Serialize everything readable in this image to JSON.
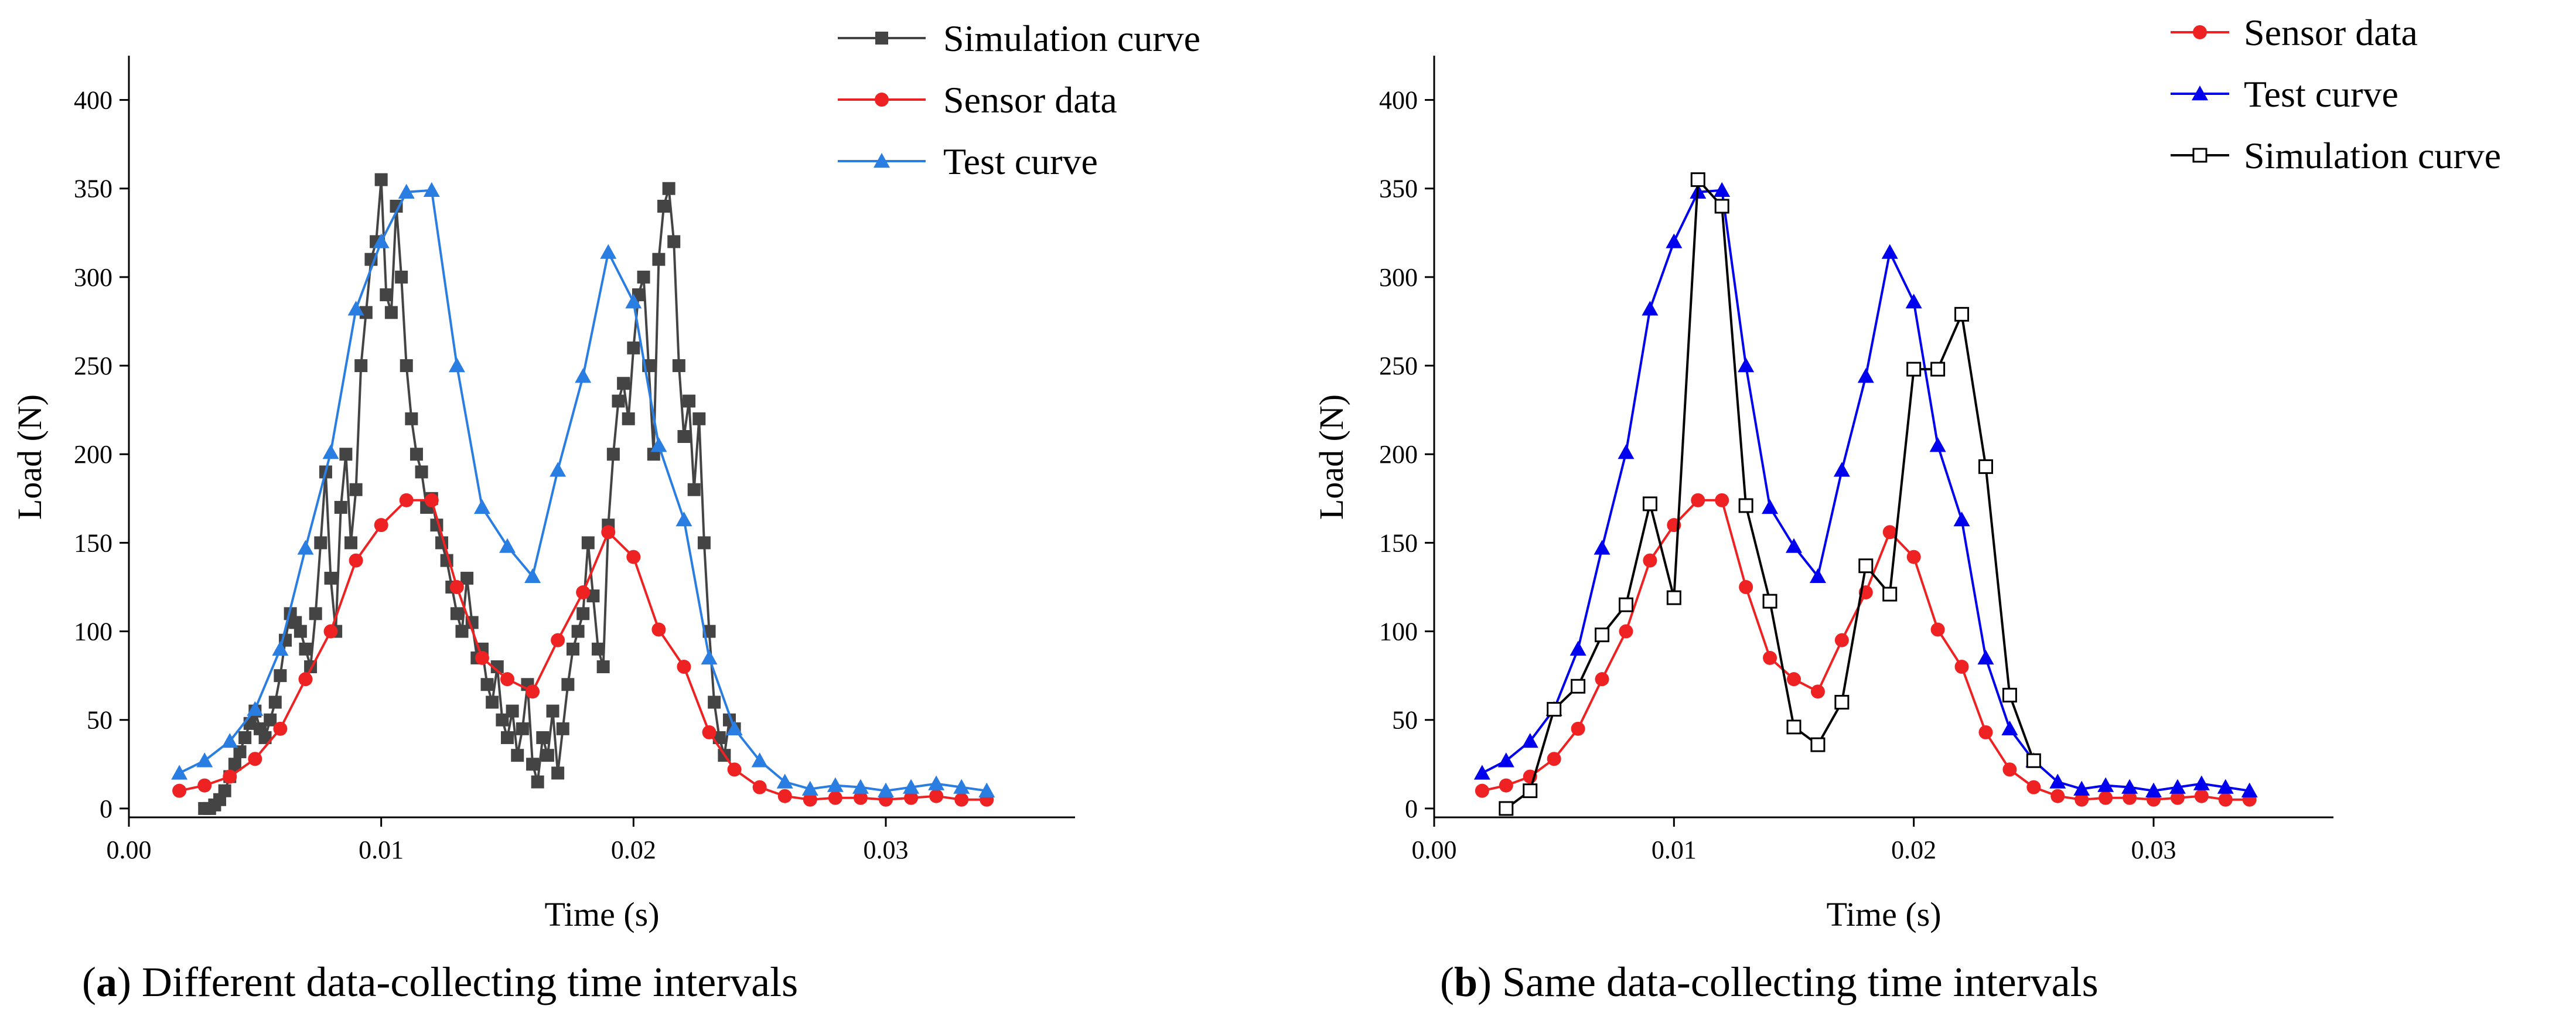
{
  "captions": {
    "a_letter": "a",
    "a_text": " Different data-collecting time intervals",
    "b_letter": "b",
    "b_text": " Same data-collecting time intervals"
  },
  "colors": {
    "sensor": "#ee2222",
    "test_a": "#2a7de1",
    "test_b": "#0000ee",
    "sim_a": "#444444",
    "sim_b": "#000000"
  },
  "chart_data": [
    {
      "id": "a",
      "type": "line",
      "title": "",
      "xlabel": "Time (s)",
      "ylabel": "Load (N)",
      "xlim": [
        0,
        0.0375
      ],
      "ylim": [
        -5,
        425
      ],
      "xticks": [
        0.0,
        0.01,
        0.02,
        0.03
      ],
      "xtick_labels": [
        "0.00",
        "0.01",
        "0.02",
        "0.03"
      ],
      "yticks": [
        0,
        50,
        100,
        150,
        200,
        250,
        300,
        350,
        400
      ],
      "ytick_labels": [
        "0",
        "50",
        "100",
        "150",
        "200",
        "250",
        "300",
        "350",
        "400"
      ],
      "legend_position": "top-right",
      "series": [
        {
          "name": "Simulation curve",
          "key": "sim",
          "color": "#444444",
          "marker": "square-filled",
          "x": [
            0.003,
            0.0032,
            0.0034,
            0.0036,
            0.0038,
            0.004,
            0.0042,
            0.0044,
            0.0046,
            0.0048,
            0.005,
            0.0052,
            0.0054,
            0.0056,
            0.0058,
            0.006,
            0.0062,
            0.0064,
            0.0066,
            0.0068,
            0.007,
            0.0072,
            0.0074,
            0.0076,
            0.0078,
            0.008,
            0.0082,
            0.0084,
            0.0086,
            0.0088,
            0.009,
            0.0092,
            0.0094,
            0.0096,
            0.0098,
            0.01,
            0.0102,
            0.0104,
            0.0106,
            0.0108,
            0.011,
            0.0112,
            0.0114,
            0.0116,
            0.0118,
            0.012,
            0.0122,
            0.0124,
            0.0126,
            0.0128,
            0.013,
            0.0132,
            0.0134,
            0.0136,
            0.0138,
            0.014,
            0.0142,
            0.0144,
            0.0146,
            0.0148,
            0.015,
            0.0152,
            0.0154,
            0.0156,
            0.0158,
            0.016,
            0.0162,
            0.0164,
            0.0166,
            0.0168,
            0.017,
            0.0172,
            0.0174,
            0.0176,
            0.0178,
            0.018,
            0.0182,
            0.0184,
            0.0186,
            0.0188,
            0.019,
            0.0192,
            0.0194,
            0.0196,
            0.0198,
            0.02,
            0.0202,
            0.0204,
            0.0206,
            0.0208,
            0.021,
            0.0212,
            0.0214,
            0.0216,
            0.0218,
            0.022,
            0.0222,
            0.0224,
            0.0226,
            0.0228,
            0.023,
            0.0232,
            0.0234,
            0.0236,
            0.0238,
            0.024
          ],
          "y": [
            0,
            0,
            2,
            5,
            10,
            18,
            25,
            32,
            40,
            48,
            55,
            45,
            40,
            50,
            60,
            75,
            95,
            110,
            105,
            100,
            90,
            80,
            110,
            150,
            190,
            130,
            100,
            170,
            200,
            150,
            180,
            250,
            280,
            310,
            320,
            355,
            290,
            280,
            340,
            300,
            250,
            220,
            200,
            190,
            170,
            175,
            160,
            150,
            140,
            125,
            110,
            100,
            130,
            105,
            85,
            90,
            70,
            60,
            80,
            50,
            40,
            55,
            30,
            45,
            70,
            25,
            15,
            40,
            30,
            55,
            20,
            45,
            70,
            90,
            100,
            110,
            150,
            120,
            90,
            80,
            160,
            200,
            230,
            240,
            220,
            260,
            290,
            300,
            250,
            200,
            310,
            340,
            350,
            320,
            250,
            210,
            230,
            180,
            220,
            150,
            100,
            60,
            40,
            30,
            50,
            45
          ]
        },
        {
          "name": "Sensor data",
          "key": "sensor",
          "color": "#ee2222",
          "marker": "circle-filled",
          "x": [
            0.002,
            0.003,
            0.004,
            0.005,
            0.006,
            0.007,
            0.008,
            0.009,
            0.01,
            0.011,
            0.012,
            0.013,
            0.014,
            0.015,
            0.016,
            0.017,
            0.018,
            0.019,
            0.02,
            0.021,
            0.022,
            0.023,
            0.024,
            0.025,
            0.026,
            0.027,
            0.028,
            0.029,
            0.03,
            0.031,
            0.032,
            0.033,
            0.034
          ],
          "y": [
            10,
            13,
            18,
            28,
            45,
            73,
            100,
            140,
            160,
            174,
            174,
            125,
            85,
            73,
            66,
            95,
            122,
            156,
            142,
            101,
            80,
            43,
            22,
            12,
            7,
            5,
            6,
            6,
            5,
            6,
            7,
            5,
            5
          ]
        },
        {
          "name": "Test curve",
          "key": "test",
          "color": "#2a7de1",
          "marker": "triangle-filled",
          "x": [
            0.002,
            0.003,
            0.004,
            0.005,
            0.006,
            0.007,
            0.008,
            0.009,
            0.01,
            0.011,
            0.012,
            0.013,
            0.014,
            0.015,
            0.016,
            0.017,
            0.018,
            0.019,
            0.02,
            0.021,
            0.022,
            0.023,
            0.024,
            0.025,
            0.026,
            0.027,
            0.028,
            0.029,
            0.03,
            0.031,
            0.032,
            0.033,
            0.034
          ],
          "y": [
            20,
            27,
            38,
            56,
            90,
            147,
            201,
            282,
            320,
            348,
            349,
            250,
            170,
            148,
            131,
            191,
            244,
            314,
            286,
            205,
            163,
            85,
            45,
            27,
            15,
            11,
            13,
            12,
            10,
            12,
            14,
            12,
            10
          ]
        }
      ]
    },
    {
      "id": "b",
      "type": "line",
      "title": "",
      "xlabel": "Time (s)",
      "ylabel": "Load (N)",
      "xlim": [
        0,
        0.0375
      ],
      "ylim": [
        -5,
        425
      ],
      "xticks": [
        0.0,
        0.01,
        0.02,
        0.03
      ],
      "xtick_labels": [
        "0.00",
        "0.01",
        "0.02",
        "0.03"
      ],
      "yticks": [
        0,
        50,
        100,
        150,
        200,
        250,
        300,
        350,
        400
      ],
      "ytick_labels": [
        "0",
        "50",
        "100",
        "150",
        "200",
        "250",
        "300",
        "350",
        "400"
      ],
      "legend_position": "top-right",
      "series": [
        {
          "name": "Sensor data",
          "key": "sensor",
          "color": "#ee2222",
          "marker": "circle-filled",
          "x": [
            0.002,
            0.003,
            0.004,
            0.005,
            0.006,
            0.007,
            0.008,
            0.009,
            0.01,
            0.011,
            0.012,
            0.013,
            0.014,
            0.015,
            0.016,
            0.017,
            0.018,
            0.019,
            0.02,
            0.021,
            0.022,
            0.023,
            0.024,
            0.025,
            0.026,
            0.027,
            0.028,
            0.029,
            0.03,
            0.031,
            0.032,
            0.033,
            0.034
          ],
          "y": [
            10,
            13,
            18,
            28,
            45,
            73,
            100,
            140,
            160,
            174,
            174,
            125,
            85,
            73,
            66,
            95,
            122,
            156,
            142,
            101,
            80,
            43,
            22,
            12,
            7,
            5,
            6,
            6,
            5,
            6,
            7,
            5,
            5
          ]
        },
        {
          "name": "Test curve",
          "key": "test",
          "color": "#0000ee",
          "marker": "triangle-filled",
          "x": [
            0.002,
            0.003,
            0.004,
            0.005,
            0.006,
            0.007,
            0.008,
            0.009,
            0.01,
            0.011,
            0.012,
            0.013,
            0.014,
            0.015,
            0.016,
            0.017,
            0.018,
            0.019,
            0.02,
            0.021,
            0.022,
            0.023,
            0.024,
            0.025,
            0.026,
            0.027,
            0.028,
            0.029,
            0.03,
            0.031,
            0.032,
            0.033,
            0.034
          ],
          "y": [
            20,
            27,
            38,
            56,
            90,
            147,
            201,
            282,
            320,
            348,
            349,
            250,
            170,
            148,
            131,
            191,
            244,
            314,
            286,
            205,
            163,
            85,
            45,
            27,
            15,
            11,
            13,
            12,
            10,
            12,
            14,
            12,
            10
          ]
        },
        {
          "name": "Simulation curve",
          "key": "sim",
          "color": "#000000",
          "marker": "square-open",
          "x": [
            0.003,
            0.004,
            0.005,
            0.006,
            0.007,
            0.008,
            0.009,
            0.01,
            0.011,
            0.012,
            0.013,
            0.014,
            0.015,
            0.016,
            0.017,
            0.018,
            0.019,
            0.02,
            0.021,
            0.022,
            0.023,
            0.024,
            0.025
          ],
          "y": [
            0,
            10,
            56,
            69,
            98,
            115,
            172,
            119,
            355,
            340,
            171,
            117,
            46,
            36,
            60,
            137,
            121,
            248,
            248,
            279,
            193,
            64,
            27
          ]
        }
      ]
    }
  ]
}
